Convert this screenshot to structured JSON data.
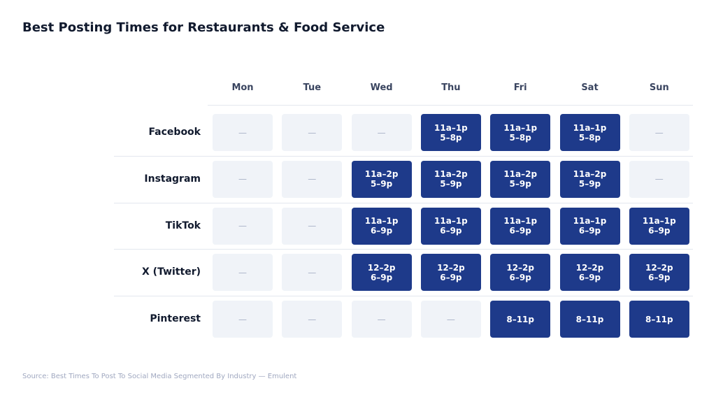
{
  "title": "Best Posting Times for Restaurants & Food Service",
  "source": "Source: Best Times To Post To Social Media Segmented By Industry — Emulent",
  "colors": {
    "active": "#1e3a8a",
    "inactive": "#f0f3f8"
  },
  "chart_data": {
    "type": "table",
    "columns": [
      "Mon",
      "Tue",
      "Wed",
      "Thu",
      "Fri",
      "Sat",
      "Sun"
    ],
    "empty_marker": "—",
    "rows": [
      {
        "label": "Facebook",
        "cells": [
          null,
          null,
          null,
          [
            "11a–1p",
            "5–8p"
          ],
          [
            "11a–1p",
            "5–8p"
          ],
          [
            "11a–1p",
            "5–8p"
          ],
          null
        ]
      },
      {
        "label": "Instagram",
        "cells": [
          null,
          null,
          [
            "11a–2p",
            "5–9p"
          ],
          [
            "11a–2p",
            "5–9p"
          ],
          [
            "11a–2p",
            "5–9p"
          ],
          [
            "11a–2p",
            "5–9p"
          ],
          null
        ]
      },
      {
        "label": "TikTok",
        "cells": [
          null,
          null,
          [
            "11a–1p",
            "6–9p"
          ],
          [
            "11a–1p",
            "6–9p"
          ],
          [
            "11a–1p",
            "6–9p"
          ],
          [
            "11a–1p",
            "6–9p"
          ],
          [
            "11a–1p",
            "6–9p"
          ]
        ]
      },
      {
        "label": "X (Twitter)",
        "cells": [
          null,
          null,
          [
            "12–2p",
            "6–9p"
          ],
          [
            "12–2p",
            "6–9p"
          ],
          [
            "12–2p",
            "6–9p"
          ],
          [
            "12–2p",
            "6–9p"
          ],
          [
            "12–2p",
            "6–9p"
          ]
        ]
      },
      {
        "label": "Pinterest",
        "cells": [
          null,
          null,
          null,
          null,
          [
            "8–11p"
          ],
          [
            "8–11p"
          ],
          [
            "8–11p"
          ]
        ]
      }
    ]
  }
}
